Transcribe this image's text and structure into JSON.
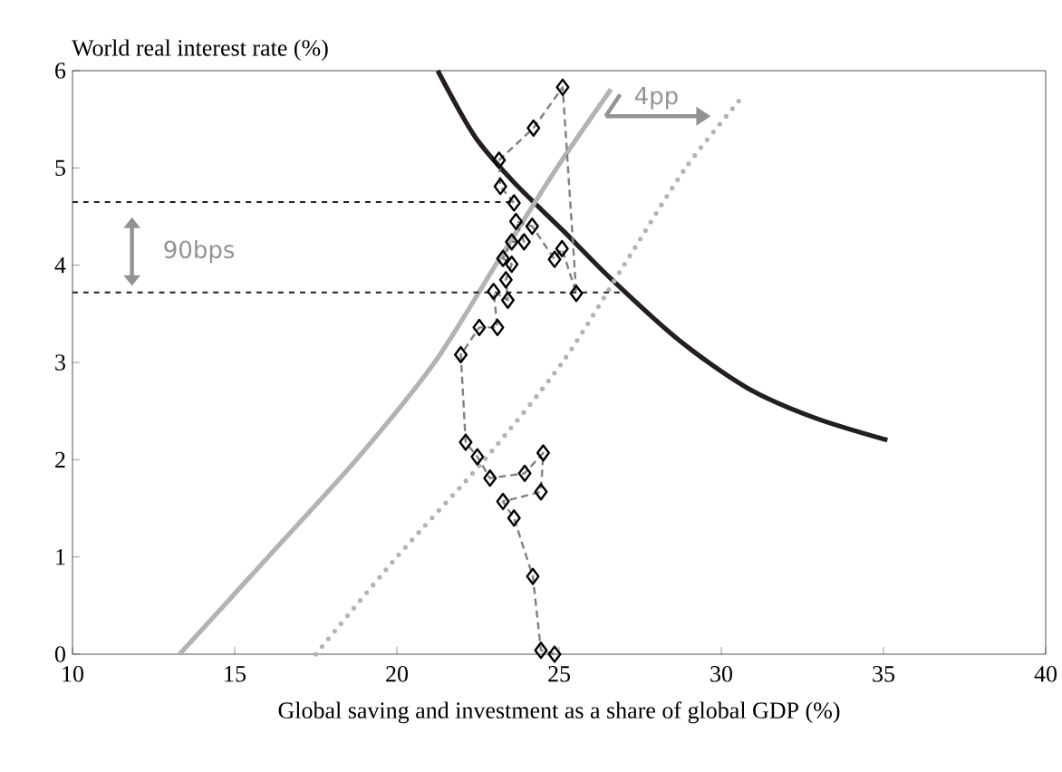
{
  "chart_data": {
    "type": "line",
    "xlabel": "Global saving and investment as a share of global GDP (%)",
    "ylabel": "World real interest rate (%)",
    "xlim": [
      10,
      40
    ],
    "xticks": [
      10,
      15,
      20,
      25,
      30,
      35,
      40
    ],
    "ylim": [
      0,
      6
    ],
    "yticks": [
      0,
      1,
      2,
      3,
      4,
      5,
      6
    ],
    "series": [
      {
        "color": "#231f20",
        "line_style": "solid",
        "marker": "none",
        "x": [
          21.26,
          22.41,
          23.67,
          25.14,
          26.6,
          28.69,
          30.79,
          32.88,
          35.12
        ],
        "values": [
          6,
          5.32,
          4.83,
          4.35,
          3.86,
          3.23,
          2.74,
          2.43,
          2.2
        ]
      },
      {
        "color": "#b3b3b3",
        "line_style": "solid",
        "marker": "none",
        "x": [
          13.3,
          16.03,
          18.75,
          21.16,
          23.04,
          24.93,
          26.6
        ],
        "values": [
          0,
          1,
          2,
          3,
          4,
          5,
          5.81
        ]
      },
      {
        "color": "#b3b3b3",
        "line_style": "dotted",
        "marker": "none",
        "x": [
          17.5,
          20.0,
          22.7,
          25.1,
          27.0,
          28.9,
          30.72
        ],
        "values": [
          0,
          1,
          2,
          3,
          4,
          5,
          5.76
        ]
      },
      {
        "color": "#231f20",
        "line_style": "dashed",
        "marker": "none",
        "x": [
          10,
          23.7
        ],
        "values": [
          4.65,
          4.65
        ]
      },
      {
        "color": "#231f20",
        "line_style": "dashed",
        "marker": "none",
        "x": [
          10,
          27.0
        ],
        "values": [
          3.72,
          3.72
        ]
      },
      {
        "color": "#808080",
        "line_style": "dashed",
        "marker": "diamond",
        "x": [
          24.86,
          24.44,
          24.19,
          23.61,
          23.27,
          24.44,
          24.51,
          23.94,
          22.87,
          22.48,
          22.12,
          21.97,
          22.54,
          23.1,
          22.98,
          23.42,
          23.36,
          23.54,
          23.27,
          23.54,
          23.92,
          23.67,
          24.17,
          24.86,
          25.09,
          25.53,
          25.11,
          24.21,
          23.15,
          23.19,
          23.61
        ],
        "values": [
          0,
          0.04,
          0.8,
          1.4,
          1.57,
          1.67,
          2.07,
          1.86,
          1.81,
          2.03,
          2.18,
          3.08,
          3.36,
          3.36,
          3.73,
          3.64,
          3.85,
          4.01,
          4.07,
          4.24,
          4.24,
          4.45,
          4.4,
          4.06,
          4.17,
          3.71,
          5.83,
          5.41,
          5.08,
          4.81,
          4.64
        ]
      }
    ],
    "annotations": [
      "90bps",
      "4pp"
    ]
  }
}
